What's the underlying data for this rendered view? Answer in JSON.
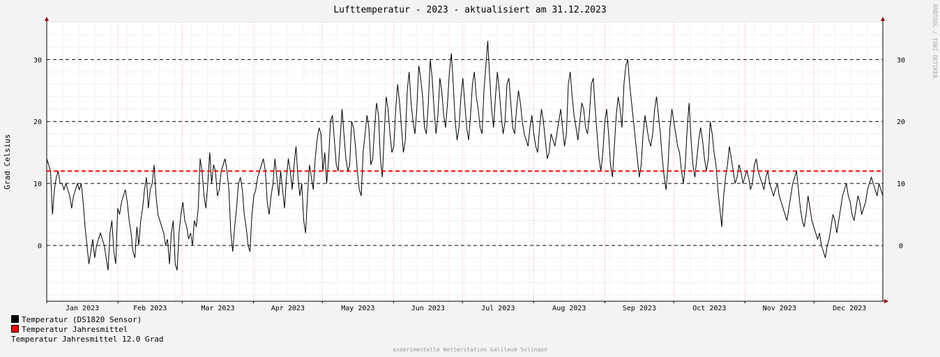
{
  "chart_data": {
    "type": "line",
    "title": "Lufttemperatur - 2023 - aktualisiert am 31.12.2023",
    "ylabel": "Grad Celsius",
    "xlabel": "",
    "ylim": [
      -9,
      36
    ],
    "yticks": [
      0,
      10,
      20,
      30
    ],
    "x_month_labels": [
      "Jan 2023",
      "Feb 2023",
      "Mar 2023",
      "Apr 2023",
      "May 2023",
      "Jun 2023",
      "Jul 2023",
      "Aug 2023",
      "Sep 2023",
      "Oct 2023",
      "Nov 2023",
      "Dec 2023"
    ],
    "grid": true,
    "legend_placement": "bottom-left",
    "series": [
      {
        "name": "Temperatur (DS1820 Sensor)",
        "color": "#000000",
        "x_start": "2023-01-01",
        "x_end": "2023-12-31",
        "values": [
          14,
          13,
          12,
          5,
          9,
          11,
          12,
          10,
          10,
          9,
          10,
          9,
          8,
          6,
          8,
          9,
          10,
          9,
          10,
          7,
          3,
          0,
          -3,
          -1,
          1,
          -2,
          0,
          1,
          2,
          1,
          0,
          -2,
          -4,
          2,
          4,
          -1,
          -3,
          6,
          5,
          7,
          8,
          9,
          7,
          4,
          2,
          -1,
          -2,
          3,
          0,
          4,
          6,
          9,
          11,
          6,
          9,
          10,
          13,
          8,
          5,
          4,
          3,
          2,
          0,
          1,
          -3,
          2,
          4,
          -3,
          -4,
          2,
          5,
          7,
          4,
          3,
          1,
          2,
          0,
          4,
          3,
          6,
          14,
          12,
          8,
          6,
          10,
          15,
          10,
          13,
          12,
          8,
          9,
          12,
          13,
          14,
          12,
          9,
          2,
          -1,
          3,
          6,
          10,
          11,
          9,
          5,
          3,
          0,
          -1,
          5,
          8,
          9,
          11,
          12,
          13,
          14,
          12,
          7,
          5,
          8,
          10,
          14,
          11,
          8,
          12,
          9,
          6,
          11,
          14,
          12,
          9,
          13,
          16,
          11,
          8,
          10,
          4,
          2,
          8,
          13,
          11,
          9,
          14,
          17,
          19,
          18,
          12,
          15,
          10,
          14,
          20,
          21,
          17,
          13,
          12,
          17,
          22,
          18,
          14,
          12,
          13,
          20,
          19,
          16,
          12,
          9,
          8,
          15,
          18,
          21,
          19,
          13,
          14,
          19,
          23,
          21,
          14,
          11,
          18,
          24,
          22,
          18,
          15,
          16,
          22,
          26,
          23,
          19,
          15,
          17,
          25,
          28,
          23,
          20,
          18,
          22,
          29,
          27,
          24,
          19,
          18,
          23,
          30,
          27,
          22,
          18,
          21,
          27,
          25,
          21,
          19,
          23,
          28,
          31,
          26,
          20,
          17,
          19,
          24,
          27,
          23,
          19,
          17,
          21,
          26,
          28,
          24,
          22,
          19,
          18,
          25,
          29,
          33,
          27,
          22,
          19,
          24,
          28,
          25,
          21,
          18,
          20,
          26,
          27,
          23,
          19,
          18,
          22,
          25,
          23,
          20,
          18,
          17,
          16,
          19,
          21,
          18,
          16,
          15,
          19,
          22,
          20,
          17,
          14,
          15,
          18,
          17,
          16,
          18,
          20,
          22,
          19,
          16,
          18,
          26,
          28,
          24,
          21,
          19,
          17,
          20,
          23,
          22,
          19,
          18,
          21,
          26,
          27,
          22,
          18,
          14,
          12,
          15,
          20,
          22,
          18,
          13,
          11,
          16,
          21,
          24,
          22,
          19,
          26,
          29,
          30,
          26,
          23,
          20,
          17,
          14,
          11,
          13,
          18,
          21,
          19,
          17,
          16,
          18,
          22,
          24,
          21,
          18,
          14,
          11,
          9,
          13,
          19,
          22,
          20,
          18,
          16,
          15,
          12,
          10,
          13,
          19,
          23,
          17,
          13,
          11,
          14,
          17,
          19,
          17,
          14,
          12,
          14,
          20,
          18,
          15,
          13,
          9,
          6,
          3,
          8,
          11,
          13,
          16,
          14,
          12,
          10,
          11,
          13,
          12,
          10,
          11,
          12,
          11,
          9,
          10,
          13,
          14,
          12,
          11,
          10,
          9,
          11,
          12,
          10,
          9,
          8,
          9,
          10,
          8,
          7,
          6,
          5,
          4,
          6,
          8,
          10,
          11,
          12,
          9,
          6,
          4,
          3,
          5,
          8,
          6,
          4,
          3,
          2,
          1,
          2,
          0,
          -1,
          -2,
          0,
          1,
          3,
          5,
          4,
          2,
          4,
          6,
          8,
          9,
          10,
          8,
          7,
          5,
          4,
          6,
          8,
          7,
          5,
          6,
          7,
          9,
          10,
          11,
          10,
          9,
          8,
          10,
          9,
          8
        ]
      },
      {
        "name": "Temperatur Jahresmittel",
        "color": "#ff0000",
        "value": 12.0
      }
    ],
    "annotation": "Temperatur Jahresmittel 12.0 Grad"
  },
  "footer": "experimentelle Wetterstation Galileum Solingen",
  "watermark": "RRDTOOL / TOBI OETIKER"
}
